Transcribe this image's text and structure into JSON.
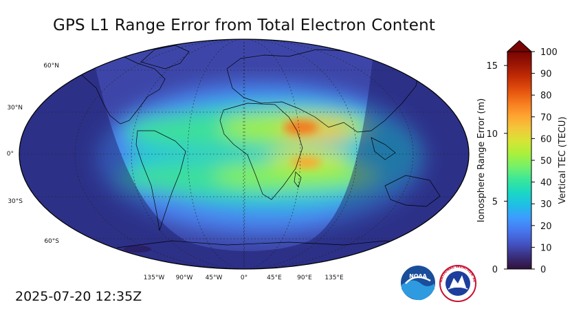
{
  "title": "GPS L1 Range Error from Total Electron Content",
  "timestamp": "2025-07-20 12:35Z",
  "map": {
    "projection": "Robinson",
    "lat_labels": [
      "60°N",
      "30°N",
      "0°",
      "30°S",
      "60°S"
    ],
    "lon_labels": [
      "135°W",
      "90°W",
      "45°W",
      "0°",
      "45°E",
      "90°E",
      "135°E"
    ],
    "night_shading": true
  },
  "colorbar": {
    "left_axis_title": "Ionosphere Range Error (m)",
    "right_axis_title": "Vertical TEC (TECU)",
    "left_ticks": [
      "0",
      "5",
      "10",
      "15"
    ],
    "right_ticks": [
      "0",
      "10",
      "20",
      "30",
      "40",
      "50",
      "60",
      "70",
      "80",
      "90",
      "100"
    ],
    "colors": [
      "#30123b",
      "#3a2f7e",
      "#4454c4",
      "#4777ef",
      "#3e9bfe",
      "#1ebfe6",
      "#1ad8c2",
      "#3ae79a",
      "#75f06a",
      "#a9f03c",
      "#d6e535",
      "#f3c73a",
      "#fea331",
      "#f67b1e",
      "#e3500d",
      "#c32d05",
      "#9b1603",
      "#7a0403"
    ],
    "extend_max_color": "#7a0403"
  },
  "logos": {
    "noaa": {
      "name": "noaa-logo",
      "text": "NOAA"
    },
    "nws": {
      "name": "nws-logo",
      "text": "NATIONAL WEATHER SERVICE"
    }
  }
}
